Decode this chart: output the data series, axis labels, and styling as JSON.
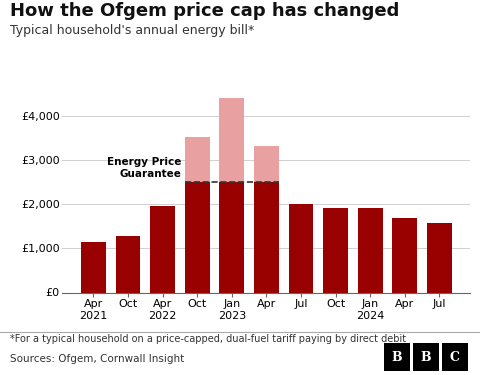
{
  "categories": [
    "Apr\n2021",
    "Oct",
    "Apr\n2022",
    "Oct",
    "Jan\n2023",
    "Apr",
    "Jul",
    "Oct",
    "Jan\n2024",
    "Apr",
    "Jul"
  ],
  "values_dark": [
    1138,
    1277,
    1971,
    2500,
    2500,
    2500,
    2000,
    1923,
    1928,
    1690,
    1568
  ],
  "values_light": [
    0,
    0,
    0,
    1035,
    1928,
    820,
    0,
    0,
    0,
    0,
    0
  ],
  "epg_line": 2500,
  "dark_color": "#990000",
  "light_color": "#e8a0a0",
  "epg_line_color": "#333333",
  "title": "How the Ofgem price cap has changed",
  "subtitle": "Typical household's annual energy bill*",
  "footnote": "*For a typical household on a price-capped, dual-fuel tariff paying by direct debit",
  "source": "Sources: Ofgem, Cornwall Insight",
  "epg_label": "Energy Price\nGuarantee",
  "ylim": [
    0,
    4600
  ],
  "yticks": [
    0,
    1000,
    2000,
    3000,
    4000
  ],
  "ytick_labels": [
    "£0",
    "£1,000",
    "£2,000",
    "£3,000",
    "£4,000"
  ],
  "background_color": "#ffffff",
  "title_fontsize": 13,
  "subtitle_fontsize": 9,
  "tick_fontsize": 8,
  "footnote_fontsize": 7,
  "source_fontsize": 7.5
}
